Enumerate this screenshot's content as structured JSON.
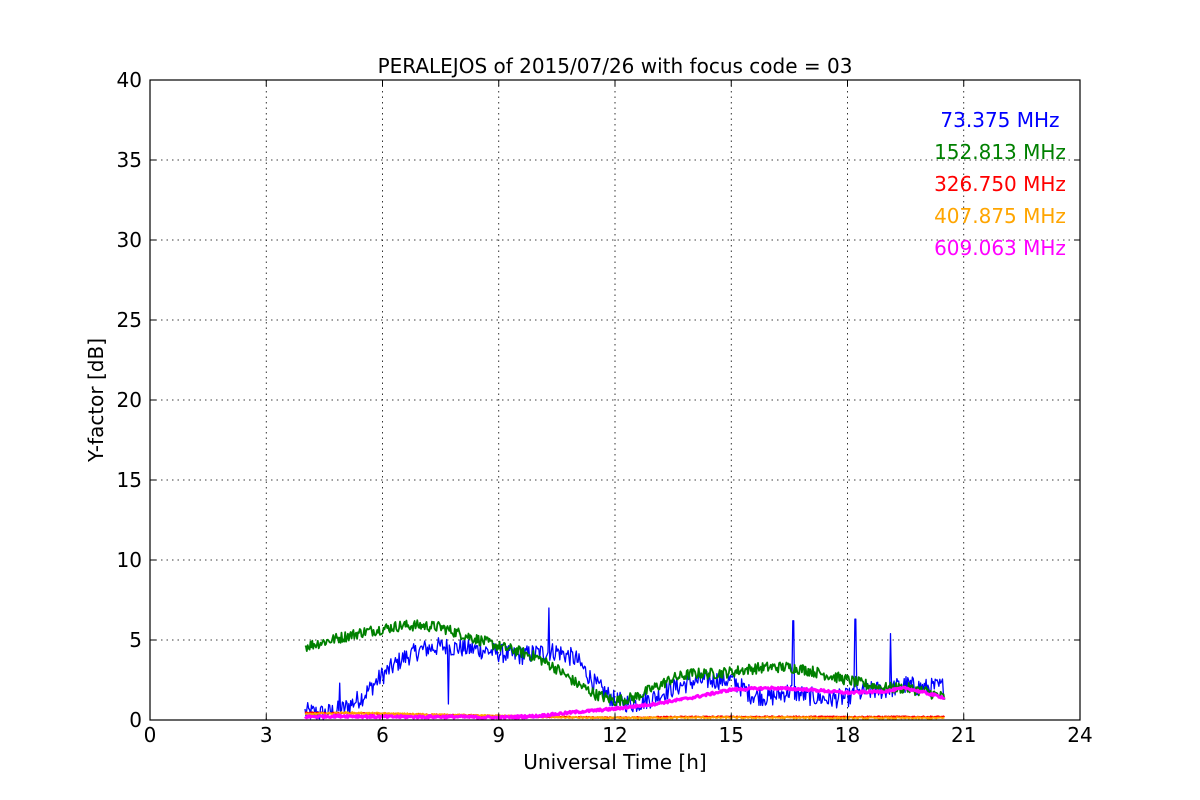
{
  "chart_data": {
    "type": "line",
    "title": "PERALEJOS of 2015/07/26 with focus code = 03",
    "xlabel": "Universal Time [h]",
    "ylabel": "Y-factor [dB]",
    "xlim": [
      0,
      24
    ],
    "ylim": [
      0,
      40
    ],
    "xticks": [
      0,
      3,
      6,
      9,
      12,
      15,
      18,
      21,
      24
    ],
    "yticks": [
      0,
      5,
      10,
      15,
      20,
      25,
      30,
      35,
      40
    ],
    "grid": true,
    "legend_position": "top-right",
    "series": [
      {
        "name": "73.375 MHz",
        "color": "#0000ff",
        "noise": 0.6,
        "x": [
          4.0,
          4.5,
          5.0,
          5.5,
          6.0,
          6.5,
          7.0,
          7.5,
          8.0,
          8.5,
          9.0,
          9.5,
          10.0,
          10.5,
          11.0,
          11.5,
          12.0,
          12.5,
          13.0,
          13.5,
          14.0,
          14.5,
          15.0,
          15.5,
          16.0,
          16.5,
          17.0,
          17.5,
          18.0,
          18.5,
          19.0,
          19.5,
          20.0,
          20.5
        ],
        "y": [
          0.5,
          0.4,
          0.7,
          1.5,
          2.8,
          3.8,
          4.4,
          4.6,
          4.5,
          4.4,
          4.2,
          4.0,
          4.2,
          4.3,
          3.8,
          2.2,
          1.2,
          1.0,
          1.4,
          2.0,
          2.4,
          2.5,
          2.5,
          1.6,
          1.4,
          1.8,
          1.5,
          1.3,
          1.4,
          1.8,
          1.9,
          2.2,
          2.0,
          2.1
        ],
        "spikes": [
          [
            4.9,
            2.3
          ],
          [
            7.7,
            1.0
          ],
          [
            10.3,
            7.0
          ],
          [
            16.6,
            6.2
          ],
          [
            18.2,
            6.3
          ],
          [
            19.1,
            5.4
          ]
        ]
      },
      {
        "name": "152.813 MHz",
        "color": "#008000",
        "noise": 0.35,
        "x": [
          4.0,
          4.5,
          5.0,
          5.5,
          6.0,
          6.5,
          7.0,
          7.5,
          8.0,
          8.5,
          9.0,
          9.5,
          10.0,
          10.5,
          11.0,
          11.5,
          12.0,
          12.5,
          13.0,
          13.5,
          14.0,
          14.5,
          15.0,
          15.5,
          16.0,
          16.5,
          17.0,
          17.5,
          18.0,
          18.5,
          19.0,
          19.5,
          20.0,
          20.5
        ],
        "y": [
          4.6,
          4.9,
          5.2,
          5.5,
          5.7,
          5.9,
          5.9,
          5.8,
          5.4,
          5.0,
          4.6,
          4.3,
          3.9,
          3.2,
          2.3,
          1.6,
          1.2,
          1.4,
          2.0,
          2.6,
          2.9,
          2.9,
          3.0,
          3.2,
          3.3,
          3.3,
          3.1,
          2.8,
          2.5,
          2.2,
          2.0,
          2.0,
          1.8,
          1.4
        ],
        "spikes": []
      },
      {
        "name": "326.750 MHz",
        "color": "#ff0000",
        "noise": 0.04,
        "x": [
          4.0,
          6.0,
          8.0,
          10.0,
          12.0,
          14.0,
          16.0,
          18.0,
          20.5
        ],
        "y": [
          0.45,
          0.4,
          0.3,
          0.2,
          0.15,
          0.2,
          0.2,
          0.2,
          0.2
        ],
        "spikes": []
      },
      {
        "name": "407.875 MHz",
        "color": "#ffa500",
        "noise": 0.06,
        "x": [
          4.0,
          5.0,
          6.0,
          7.0,
          8.0,
          9.0,
          10.0,
          11.0,
          12.0,
          14.0,
          16.0,
          18.0,
          20.5
        ],
        "y": [
          0.35,
          0.45,
          0.4,
          0.35,
          0.3,
          0.25,
          0.2,
          0.15,
          0.12,
          0.15,
          0.15,
          0.12,
          0.12
        ],
        "spikes": []
      },
      {
        "name": "609.063 MHz",
        "color": "#ff00ff",
        "noise": 0.08,
        "x": [
          4.0,
          5.0,
          6.0,
          7.0,
          8.0,
          9.0,
          10.0,
          11.0,
          12.0,
          13.0,
          14.0,
          15.0,
          16.0,
          17.0,
          18.0,
          19.0,
          19.5,
          20.0,
          20.5
        ],
        "y": [
          0.2,
          0.25,
          0.2,
          0.2,
          0.2,
          0.15,
          0.25,
          0.5,
          0.7,
          1.0,
          1.4,
          1.9,
          2.0,
          1.9,
          1.7,
          1.8,
          2.0,
          1.7,
          1.4
        ],
        "spikes": []
      }
    ]
  }
}
